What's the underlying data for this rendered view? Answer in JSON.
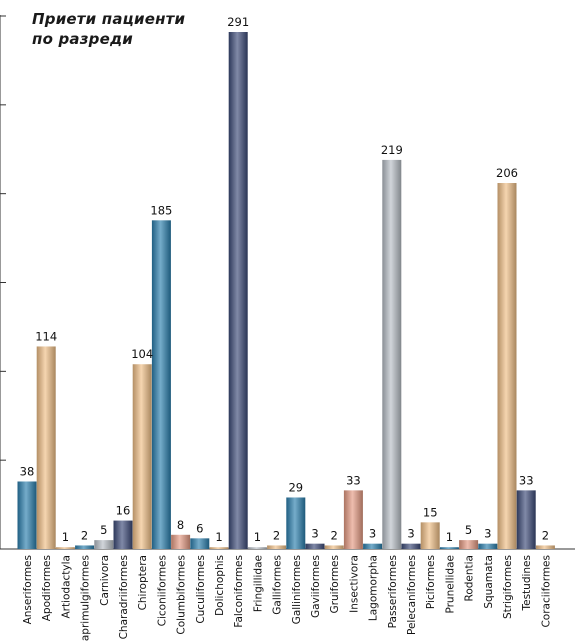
{
  "chart_data": {
    "type": "bar",
    "title_lines": [
      "Приети пациенти",
      "по разреди"
    ],
    "categories": [
      "Anseriformes",
      "Apodiformes",
      "Artiodactyla",
      "Caprimulgiformes",
      "Carnivora",
      "Charadriiformes",
      "Chiroptera",
      "Ciconiiformes",
      "Columbiformes",
      "Cuculiformes",
      "Dolichophis",
      "Falconiformes",
      "Fringillidae",
      "Galliformes",
      "Galliniformes",
      "Gaviiformes",
      "Gruiformes",
      "Insectivora",
      "Lagomorpha",
      "Passeriformes",
      "Pelecaniformes",
      "Piciformes",
      "Prunellidae",
      "Rodentia",
      "Squamata",
      "Strigiformes",
      "Testudines",
      "Coraciiformes"
    ],
    "values": [
      38,
      114,
      1,
      2,
      5,
      16,
      104,
      185,
      8,
      6,
      1,
      291,
      1,
      2,
      29,
      3,
      2,
      33,
      3,
      219,
      3,
      15,
      1,
      5,
      3,
      206,
      33,
      2
    ],
    "bar_colors": [
      "#2a7fae",
      "#f0bf86",
      "#f0bf86",
      "#2a7fae",
      "#b8bfc6",
      "#3c4a78",
      "#f0bf86",
      "#2a7fae",
      "#e59a82",
      "#2a7fae",
      "#f0bf86",
      "#3c4a78",
      "#b8bfc6",
      "#f0bf86",
      "#2a7fae",
      "#3c4a78",
      "#f0bf86",
      "#e59a82",
      "#2a7fae",
      "#b8bfc6",
      "#3c4a78",
      "#f0bf86",
      "#2a7fae",
      "#e59a82",
      "#2a7fae",
      "#f0bf86",
      "#3c4a78",
      "#f0bf86"
    ],
    "ylim": [
      0,
      300
    ],
    "grid": false,
    "xlabel": "",
    "ylabel": ""
  }
}
